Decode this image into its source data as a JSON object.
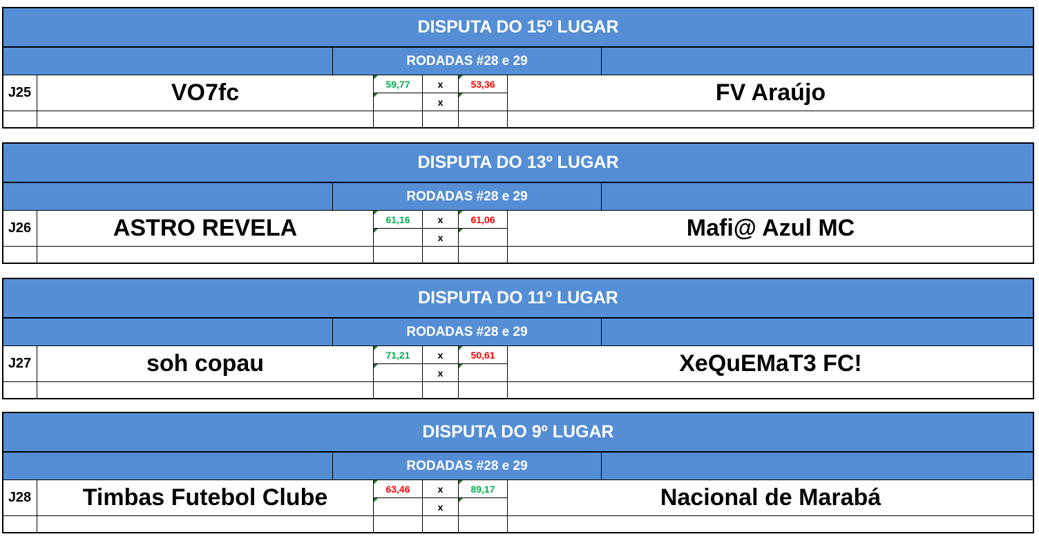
{
  "colors": {
    "header_bg": "#558ed5",
    "winner": "#00b050",
    "loser": "#ff0000"
  },
  "matches": [
    {
      "title": "DISPUTA DO 15º LUGAR",
      "rounds": "RODADAS #28 e 29",
      "id": "J25",
      "home": "VO7fc",
      "home_score": "59,77",
      "sep1": "x",
      "sep2": "x",
      "away_score": "53,36",
      "away": "FV Araújo",
      "home_win": true
    },
    {
      "title": "DISPUTA DO 13º LUGAR",
      "rounds": "RODADAS #28 e 29",
      "id": "J26",
      "home": "ASTRO REVELA",
      "home_score": "61,16",
      "sep1": "x",
      "sep2": "x",
      "away_score": "61,06",
      "away": "Mafi@ Azul MC",
      "home_win": true
    },
    {
      "title": "DISPUTA DO 11º LUGAR",
      "rounds": "RODADAS #28 e 29",
      "id": "J27",
      "home": "soh copau",
      "home_score": "71,21",
      "sep1": "x",
      "sep2": "x",
      "away_score": "50,61",
      "away": "XeQuEMaT3 FC!",
      "home_win": true
    },
    {
      "title": "DISPUTA DO 9º LUGAR",
      "rounds": "RODADAS #28 e 29",
      "id": "J28",
      "home": "Timbas Futebol Clube",
      "home_score": "63,46",
      "sep1": "x",
      "sep2": "x",
      "away_score": "89,17",
      "away": "Nacional de Marabá",
      "home_win": false
    }
  ]
}
